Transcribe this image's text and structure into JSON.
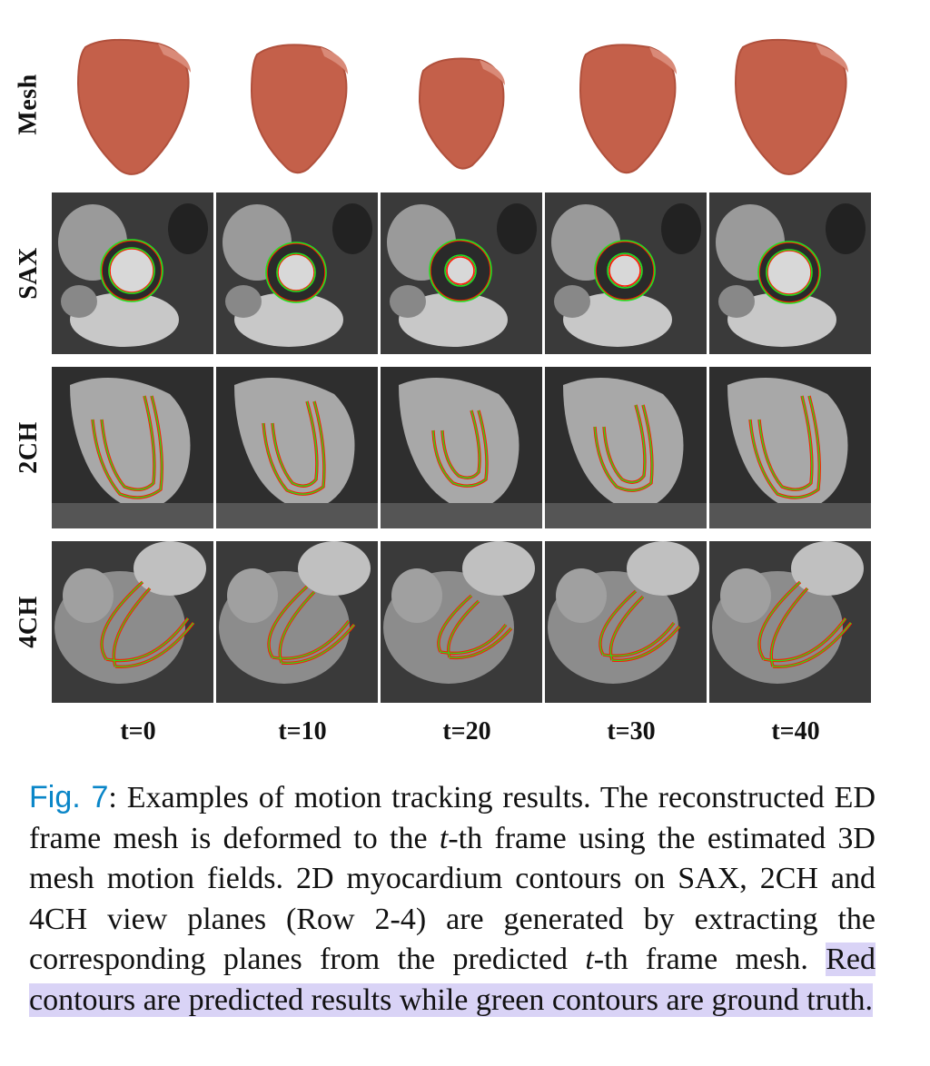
{
  "figure": {
    "row_labels": [
      "Mesh",
      "SAX",
      "2CH",
      "4CH"
    ],
    "time_labels": [
      "t=0",
      "t=10",
      "t=20",
      "t=30",
      "t=40"
    ],
    "colors": {
      "mesh_fill": "#c4604a",
      "predicted_contour": "#ff1a00",
      "ground_truth_contour": "#22e022",
      "caption_link": "#0a86c8",
      "highlight": "#d9d3f6"
    }
  },
  "caption": {
    "fig_label": "Fig. 7",
    "t1": ": Examples of motion tracking results. The reconstructed ED frame mesh is deformed to the ",
    "t_var": "t",
    "t2": "-th frame using the estimated 3D mesh motion fields. 2D myocardium contours on SAX, 2CH and 4CH view planes (Row 2-4) are generated by extracting the corresponding planes from the predicted ",
    "t3": "-th frame mesh. ",
    "highlight": "Red contours are predicted results while green contours are ground truth."
  }
}
